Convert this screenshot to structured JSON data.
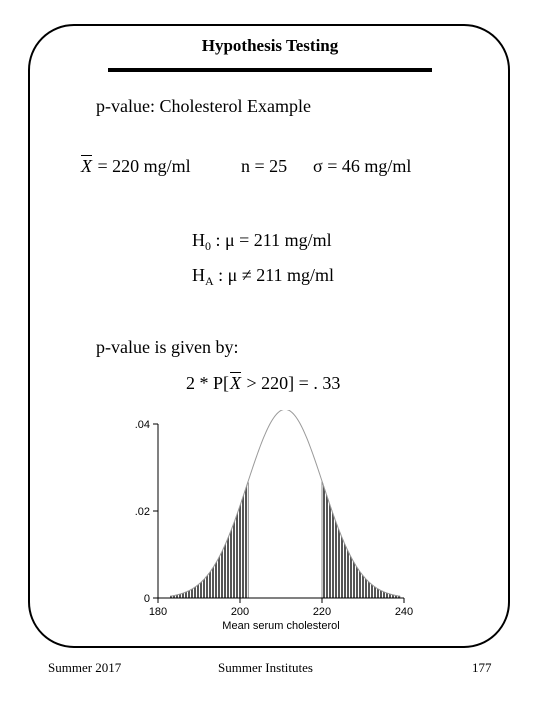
{
  "slide": {
    "title": "Hypothesis Testing",
    "subtitle_prefix": "p-value:",
    "subtitle_rest": "Cholesterol Example",
    "givens": {
      "xbar_symbol": "X",
      "xbar_value": "= 220 mg/ml",
      "n": "n = 25",
      "sigma": "σ = 46 mg/ml"
    },
    "h0": {
      "label": "H",
      "sub": "0",
      "text": ": μ = 211 mg/ml"
    },
    "ha": {
      "label": "H",
      "sub": "A",
      "text": ": μ ≠ 211 mg/ml"
    },
    "pvalue_intro": "p-value is given by:",
    "pvalue_expr": {
      "prefix": "2 * P[",
      "symbol": "X",
      "suffix": "> 220] = . 33"
    }
  },
  "chart_data": {
    "type": "area",
    "xlabel": "Mean serum cholesterol",
    "ylabel": "",
    "x_ticks": [
      "180",
      "200",
      "220",
      "240"
    ],
    "y_ticks": [
      "0",
      ".02",
      ".04"
    ],
    "xlim": [
      180,
      240
    ],
    "ylim": [
      0,
      0.04
    ],
    "distribution": {
      "mean": 211,
      "sd": 9.2
    },
    "shaded_tails": [
      {
        "from": 183,
        "to": 202
      },
      {
        "from": 220,
        "to": 239
      }
    ]
  },
  "footer": {
    "left": "Summer 2017",
    "center": "Summer Institutes",
    "right": "177"
  }
}
